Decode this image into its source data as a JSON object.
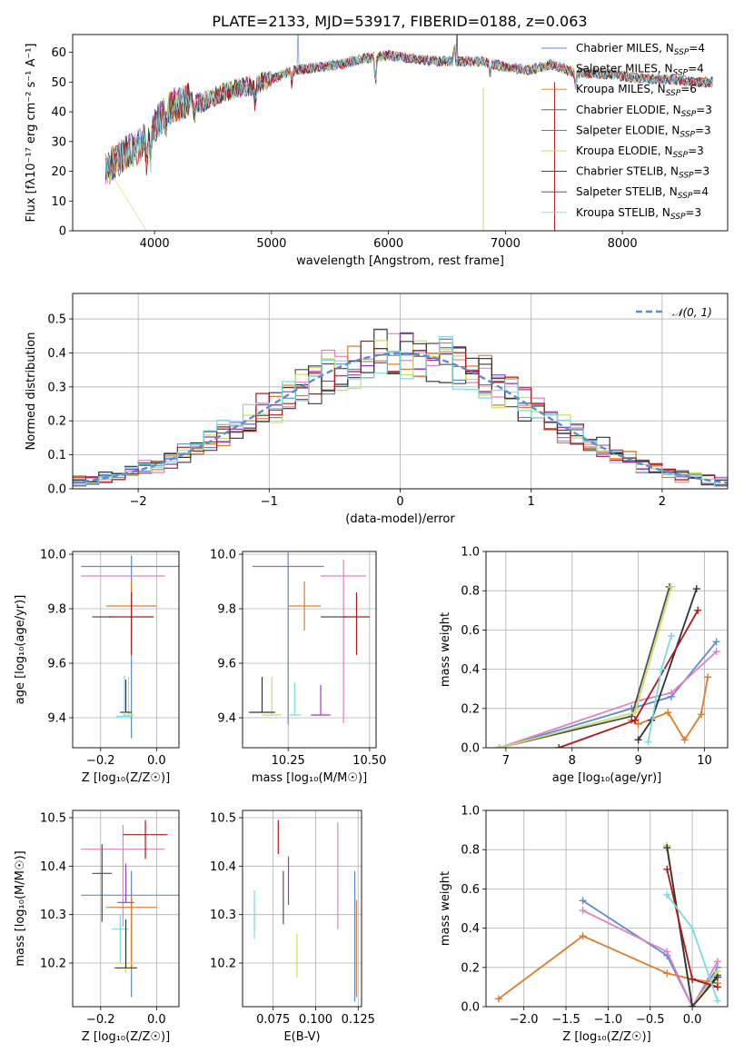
{
  "figure": {
    "title": "PLATE=2133, MJD=53917, FIBERID=0188, z=0.063"
  },
  "colors": {
    "chabrier_miles": "#5b8bd8",
    "salpeter_miles": "#e37fc4",
    "kroupa_miles": "#e07b28",
    "chabrier_elodie": "#4f4f4f",
    "salpeter_elodie": "#9b3bbd",
    "kroupa_elodie": "#c9e063",
    "chabrier_stelib": "#333333",
    "salpeter_stelib": "#b0181c",
    "kroupa_stelib": "#7dd9e0",
    "normal": "#5b8bd8",
    "grid": "#b0b0b0"
  },
  "chart_data": [
    {
      "id": "spectrum",
      "type": "line",
      "title": "PLATE=2133, MJD=53917, FIBERID=0188, z=0.063",
      "xlabel": "wavelength [Angstrom, rest frame]",
      "ylabel": "Flux [fλ10⁻¹⁷ erg cm⁻² s⁻¹ A⁻¹]",
      "xlim": [
        3300,
        8900
      ],
      "ylim": [
        0,
        66
      ],
      "xticks": [
        "4000",
        "5000",
        "6000",
        "7000",
        "8000"
      ],
      "yticks": [
        "0",
        "10",
        "20",
        "30",
        "40",
        "50",
        "60"
      ],
      "grid": false,
      "legend_position": "top-right",
      "continuum": {
        "wavelength": [
          3580,
          3650,
          3750,
          3850,
          3950,
          4050,
          4150,
          4300,
          4400,
          4550,
          4700,
          4850,
          5000,
          5200,
          5400,
          5600,
          5800,
          6000,
          6200,
          6400,
          6600,
          6800,
          7000,
          7200,
          7400,
          7600,
          7800,
          8000,
          8200,
          8400,
          8600,
          8800
        ],
        "flux": [
          20,
          23,
          26,
          28,
          32,
          38,
          42,
          44,
          43,
          46,
          48,
          49,
          51,
          54,
          55,
          56,
          58,
          59,
          58,
          57,
          57,
          57,
          55,
          54,
          56,
          53,
          53,
          52,
          51,
          51,
          50,
          50
        ]
      },
      "series": [
        {
          "name": "Chabrier MILES, N_SSP=4",
          "legend": "Chabrier MILES, N",
          "sub": "SSP",
          "suffix": "=4",
          "color_key": "chabrier_miles"
        },
        {
          "name": "Salpeter MILES, N_SSP=4",
          "legend": "Salpeter MILES, N",
          "sub": "SSP",
          "suffix": "=4",
          "color_key": "salpeter_miles"
        },
        {
          "name": "Kroupa MILES, N_SSP=6",
          "legend": "Kroupa MILES, N",
          "sub": "SSP",
          "suffix": "=6",
          "color_key": "kroupa_miles"
        },
        {
          "name": "Chabrier ELODIE, N_SSP=3",
          "legend": "Chabrier ELODIE, N",
          "sub": "SSP",
          "suffix": "=3",
          "color_key": "chabrier_elodie"
        },
        {
          "name": "Salpeter ELODIE, N_SSP=3",
          "legend": "Salpeter ELODIE, N",
          "sub": "SSP",
          "suffix": "=3",
          "color_key": "salpeter_elodie"
        },
        {
          "name": "Kroupa ELODIE, N_SSP=3",
          "legend": "Kroupa ELODIE, N",
          "sub": "SSP",
          "suffix": "=3",
          "color_key": "kroupa_elodie"
        },
        {
          "name": "Chabrier STELIB, N_SSP=3",
          "legend": "Chabrier STELIB, N",
          "sub": "SSP",
          "suffix": "=3",
          "color_key": "chabrier_stelib"
        },
        {
          "name": "Salpeter STELIB, N_SSP=4",
          "legend": "Salpeter STELIB, N",
          "sub": "SSP",
          "suffix": "=4",
          "color_key": "salpeter_stelib"
        },
        {
          "name": "Kroupa STELIB, N_SSP=3",
          "legend": "Kroupa STELIB, N",
          "sub": "SSP",
          "suffix": "=3",
          "color_key": "kroupa_stelib"
        }
      ]
    },
    {
      "id": "residuals",
      "type": "line",
      "xlabel": "(data-model)/error",
      "ylabel": "Normed distribution",
      "xlim": [
        -2.5,
        2.5
      ],
      "ylim": [
        0,
        0.575
      ],
      "xticks": [
        "−2",
        "−1",
        "0",
        "1",
        "2"
      ],
      "yticks": [
        "0.0",
        "0.1",
        "0.2",
        "0.3",
        "0.4",
        "0.5"
      ],
      "grid": true,
      "legend": "𝒩(0, 1)",
      "legend_position": "top-right",
      "bin_width": 0.1
    },
    {
      "id": "age_vs_Z",
      "type": "scatter",
      "xlabel": "Z [log₁₀(Z/Z☉)]",
      "ylabel": "age  [log₁₀(age/yr)]",
      "xlim": [
        -0.3,
        0.08
      ],
      "ylim": [
        9.29,
        10.01
      ],
      "xticks": [
        "−0.2",
        "0.0"
      ],
      "yticks": [
        "9.4",
        "9.6",
        "9.8",
        "10.0"
      ],
      "grid": true,
      "points": [
        {
          "color_key": "chabrier_miles",
          "x": -0.09,
          "xerr": 0.18,
          "y": 9.955,
          "yerr": [
            0.63,
            0.04
          ]
        },
        {
          "color_key": "salpeter_miles",
          "x": -0.12,
          "xerr": 0.15,
          "y": 9.92,
          "yerr": [
            0.0,
            0.0
          ]
        },
        {
          "color_key": "kroupa_miles",
          "x": -0.09,
          "xerr": 0.09,
          "y": 9.81,
          "yerr": [
            0.09,
            0.09
          ]
        },
        {
          "color_key": "chabrier_elodie",
          "x": -0.195,
          "xerr": 0.035,
          "y": 9.77,
          "yerr": [
            0.0,
            0.0
          ]
        },
        {
          "color_key": "salpeter_stelib",
          "x": -0.09,
          "xerr": 0.08,
          "y": 9.77,
          "yerr": [
            0.14,
            0.09
          ]
        },
        {
          "color_key": "kroupa_elodie",
          "x": -0.1,
          "xerr": 0.02,
          "y": 9.41,
          "yerr": [
            0.0,
            0.14
          ]
        },
        {
          "color_key": "chabrier_stelib",
          "x": -0.11,
          "xerr": 0.02,
          "y": 9.42,
          "yerr": [
            0.0,
            0.12
          ]
        },
        {
          "color_key": "kroupa_stelib",
          "x": -0.115,
          "xerr": 0.03,
          "y": 9.405,
          "yerr": [
            0.0,
            0.15
          ]
        }
      ]
    },
    {
      "id": "age_vs_mass",
      "type": "scatter",
      "xlabel": "mass [log₁₀(M/M☉)]",
      "ylabel": "",
      "xlim": [
        10.11,
        10.52
      ],
      "ylim": [
        9.29,
        10.01
      ],
      "xticks": [
        "10.25",
        "10.50"
      ],
      "yticks": [
        "9.4",
        "9.6",
        "9.8",
        "10.0"
      ],
      "grid": true,
      "points": [
        {
          "color_key": "chabrier_miles",
          "x": 10.25,
          "xerr": 0.11,
          "y": 9.955,
          "yerr": [
            0.58,
            0.05
          ]
        },
        {
          "color_key": "salpeter_miles",
          "x": 10.42,
          "xerr": 0.07,
          "y": 9.92,
          "yerr": [
            0.54,
            0.06
          ]
        },
        {
          "color_key": "kroupa_miles",
          "x": 10.3,
          "xerr": 0.05,
          "y": 9.81,
          "yerr": [
            0.09,
            0.09
          ]
        },
        {
          "color_key": "chabrier_elodie",
          "x": 10.39,
          "xerr": 0.04,
          "y": 9.77,
          "yerr": [
            0.0,
            0.0
          ]
        },
        {
          "color_key": "salpeter_stelib",
          "x": 10.46,
          "xerr": 0.04,
          "y": 9.77,
          "yerr": [
            0.14,
            0.09
          ]
        },
        {
          "color_key": "kroupa_elodie",
          "x": 10.2,
          "xerr": 0.03,
          "y": 9.41,
          "yerr": [
            0.0,
            0.14
          ]
        },
        {
          "color_key": "chabrier_stelib",
          "x": 10.17,
          "xerr": 0.04,
          "y": 9.42,
          "yerr": [
            0.0,
            0.13
          ]
        },
        {
          "color_key": "kroupa_stelib",
          "x": 10.27,
          "xerr": 0.02,
          "y": 9.41,
          "yerr": [
            0.0,
            0.12
          ]
        },
        {
          "color_key": "salpeter_elodie",
          "x": 10.35,
          "xerr": 0.03,
          "y": 9.41,
          "yerr": [
            0.0,
            0.11
          ]
        }
      ]
    },
    {
      "id": "weight_vs_age",
      "type": "line",
      "xlabel": "age  [log₁₀(age/yr)]",
      "ylabel": "mass weight",
      "xlim": [
        6.7,
        10.35
      ],
      "ylim": [
        0,
        1.0
      ],
      "xticks": [
        "7",
        "8",
        "9",
        "10"
      ],
      "yticks": [
        "0.0",
        "0.2",
        "0.4",
        "0.6",
        "0.8",
        "1.0"
      ],
      "grid": true,
      "series": [
        {
          "color_key": "chabrier_miles",
          "x": [
            6.9,
            8.9,
            9.5,
            10.18
          ],
          "y": [
            0.0,
            0.2,
            0.26,
            0.54
          ]
        },
        {
          "color_key": "salpeter_miles",
          "x": [
            6.9,
            9.0,
            9.5,
            10.18
          ],
          "y": [
            0.0,
            0.24,
            0.28,
            0.49
          ]
        },
        {
          "color_key": "kroupa_miles",
          "x": [
            8.9,
            9.0,
            9.45,
            9.7,
            9.95,
            10.05
          ],
          "y": [
            0.14,
            0.12,
            0.18,
            0.04,
            0.17,
            0.36
          ]
        },
        {
          "color_key": "chabrier_elodie",
          "x": [
            6.9,
            8.9,
            9.47
          ],
          "y": [
            0.0,
            0.16,
            0.82
          ]
        },
        {
          "color_key": "kroupa_elodie",
          "x": [
            6.9,
            8.95,
            9.5
          ],
          "y": [
            0.0,
            0.18,
            0.82
          ]
        },
        {
          "color_key": "chabrier_stelib",
          "x": [
            9.0,
            9.2,
            9.88
          ],
          "y": [
            0.04,
            0.14,
            0.81
          ]
        },
        {
          "color_key": "salpeter_stelib",
          "x": [
            7.8,
            8.95,
            9.9
          ],
          "y": [
            0.0,
            0.14,
            0.7
          ]
        },
        {
          "color_key": "kroupa_stelib",
          "x": [
            9.15,
            9.35,
            9.5
          ],
          "y": [
            0.03,
            0.4,
            0.57
          ]
        }
      ]
    },
    {
      "id": "mass_vs_Z",
      "type": "scatter",
      "xlabel": "Z [log₁₀(Z/Z☉)]",
      "ylabel": "mass [log₁₀(M/M☉)]",
      "xlim": [
        -0.3,
        0.08
      ],
      "ylim": [
        10.11,
        10.515
      ],
      "xticks": [
        "−0.2",
        "0.0"
      ],
      "yticks": [
        "10.2",
        "10.3",
        "10.4",
        "10.5"
      ],
      "grid": true,
      "points": [
        {
          "color_key": "chabrier_miles",
          "x": -0.09,
          "xerr": 0.18,
          "y": 10.34,
          "yerr": [
            0.21,
            0.05
          ]
        },
        {
          "color_key": "salpeter_miles",
          "x": -0.12,
          "xerr": 0.15,
          "y": 10.435,
          "yerr": [
            0.16,
            0.05
          ]
        },
        {
          "color_key": "kroupa_miles",
          "x": -0.09,
          "xerr": 0.09,
          "y": 10.315,
          "yerr": [
            0.13,
            0.02
          ]
        },
        {
          "color_key": "chabrier_elodie",
          "x": -0.195,
          "xerr": 0.035,
          "y": 10.385,
          "yerr": [
            0.1,
            0.06
          ]
        },
        {
          "color_key": "salpeter_stelib",
          "x": -0.04,
          "xerr": 0.08,
          "y": 10.465,
          "yerr": [
            0.05,
            0.03
          ]
        },
        {
          "color_key": "salpeter_elodie",
          "x": -0.11,
          "xerr": 0.03,
          "y": 10.325,
          "yerr": [
            0.0,
            0.08
          ]
        },
        {
          "color_key": "kroupa_stelib",
          "x": -0.13,
          "xerr": 0.03,
          "y": 10.27,
          "yerr": [
            0.07,
            0.03
          ]
        },
        {
          "color_key": "kroupa_elodie",
          "x": -0.11,
          "xerr": 0.04,
          "y": 10.2,
          "yerr": [
            0.02,
            0.07
          ]
        },
        {
          "color_key": "chabrier_stelib",
          "x": -0.11,
          "xerr": 0.04,
          "y": 10.19,
          "yerr": [
            0.0,
            0.1
          ]
        }
      ]
    },
    {
      "id": "mass_vs_ebv",
      "type": "scatter",
      "xlabel": "E(B-V)",
      "ylabel": "",
      "xlim": [
        0.057,
        0.127
      ],
      "ylim": [
        10.11,
        10.515
      ],
      "xticks": [
        "0.075",
        "0.100",
        "0.125"
      ],
      "yticks": [
        "10.2",
        "10.3",
        "10.4",
        "10.5"
      ],
      "grid": true,
      "points": [
        {
          "color_key": "kroupa_stelib",
          "x": 0.064,
          "y": 10.3,
          "yerr": [
            0.05,
            0.05
          ]
        },
        {
          "color_key": "salpeter_stelib",
          "x": 0.078,
          "y": 10.465,
          "yerr": [
            0.04,
            0.03
          ]
        },
        {
          "color_key": "chabrier_elodie",
          "x": 0.081,
          "y": 10.34,
          "yerr": [
            0.06,
            0.05
          ]
        },
        {
          "color_key": "salpeter_elodie",
          "x": 0.084,
          "y": 10.36,
          "yerr": [
            0.04,
            0.06
          ]
        },
        {
          "color_key": "kroupa_elodie",
          "x": 0.089,
          "y": 10.2,
          "yerr": [
            0.03,
            0.06
          ]
        },
        {
          "color_key": "salpeter_miles",
          "x": 0.113,
          "y": 10.38,
          "yerr": [
            0.11,
            0.11
          ]
        },
        {
          "color_key": "chabrier_miles",
          "x": 0.123,
          "y": 10.26,
          "yerr": [
            0.14,
            0.13
          ]
        },
        {
          "color_key": "kroupa_miles",
          "x": 0.124,
          "y": 10.2,
          "yerr": [
            0.07,
            0.13
          ]
        }
      ]
    },
    {
      "id": "weight_vs_Z",
      "type": "line",
      "xlabel": "Z [log₁₀(Z/Z☉)]",
      "ylabel": "mass weight",
      "xlim": [
        -2.45,
        0.42
      ],
      "ylim": [
        0,
        1.0
      ],
      "xticks": [
        "−2.0",
        "−1.5",
        "−1.0",
        "−0.5",
        "0.0"
      ],
      "yticks": [
        "0.0",
        "0.2",
        "0.4",
        "0.6",
        "0.8",
        "1.0"
      ],
      "grid": true,
      "series": [
        {
          "color_key": "chabrier_miles",
          "x": [
            -1.3,
            -0.3,
            0.0,
            0.3
          ],
          "y": [
            0.54,
            0.26,
            0.0,
            0.2
          ]
        },
        {
          "color_key": "salpeter_miles",
          "x": [
            -1.3,
            -0.3,
            0.0,
            0.3
          ],
          "y": [
            0.49,
            0.28,
            0.0,
            0.23
          ]
        },
        {
          "color_key": "kroupa_miles",
          "x": [
            -2.3,
            -1.3,
            -0.3,
            0.0,
            0.3
          ],
          "y": [
            0.04,
            0.36,
            0.17,
            0.14,
            0.12
          ]
        },
        {
          "color_key": "chabrier_elodie",
          "x": [
            -0.3,
            0.0,
            0.3
          ],
          "y": [
            0.82,
            0.0,
            0.16
          ]
        },
        {
          "color_key": "kroupa_elodie",
          "x": [
            -0.3,
            0.0,
            0.3
          ],
          "y": [
            0.82,
            0.0,
            0.18
          ]
        },
        {
          "color_key": "chabrier_stelib",
          "x": [
            -0.3,
            0.0,
            0.3
          ],
          "y": [
            0.81,
            0.0,
            0.15
          ]
        },
        {
          "color_key": "salpeter_stelib",
          "x": [
            -0.3,
            0.0,
            0.3
          ],
          "y": [
            0.7,
            0.14,
            0.1
          ]
        },
        {
          "color_key": "kroupa_stelib",
          "x": [
            -0.3,
            0.0,
            0.3
          ],
          "y": [
            0.57,
            0.4,
            0.03
          ]
        }
      ]
    }
  ]
}
